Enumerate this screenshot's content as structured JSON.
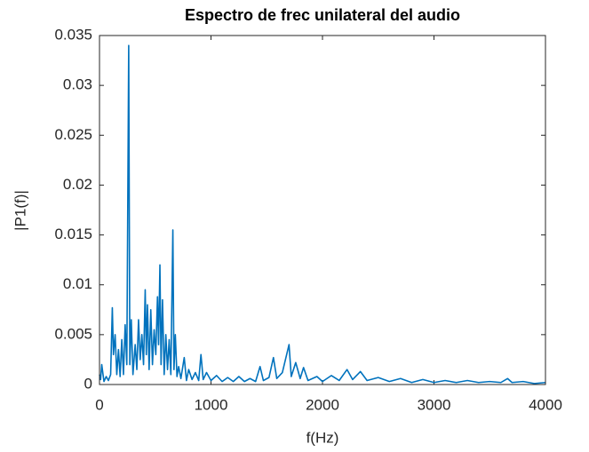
{
  "chart_data": {
    "type": "line",
    "title": "Espectro de frec unilateral del audio",
    "x_label": "f(Hz)",
    "y_label": "|P1(f)|",
    "x": [
      0,
      10,
      20,
      40,
      60,
      80,
      100,
      115,
      125,
      140,
      155,
      170,
      185,
      200,
      215,
      230,
      245,
      262,
      272,
      285,
      300,
      320,
      335,
      350,
      365,
      380,
      395,
      410,
      420,
      430,
      445,
      460,
      475,
      490,
      505,
      520,
      530,
      542,
      552,
      565,
      580,
      595,
      610,
      625,
      640,
      658,
      668,
      680,
      695,
      710,
      730,
      760,
      780,
      800,
      830,
      860,
      890,
      910,
      930,
      960,
      1000,
      1050,
      1100,
      1150,
      1200,
      1250,
      1300,
      1350,
      1400,
      1440,
      1470,
      1520,
      1560,
      1590,
      1640,
      1700,
      1720,
      1760,
      1800,
      1830,
      1870,
      1950,
      2000,
      2080,
      2150,
      2220,
      2270,
      2340,
      2400,
      2500,
      2600,
      2700,
      2800,
      2900,
      3000,
      3100,
      3200,
      3300,
      3400,
      3500,
      3600,
      3660,
      3700,
      3800,
      3900,
      4000
    ],
    "series": [
      {
        "name": "|P1(f)|",
        "color": "#0072BD",
        "values": [
          0.001,
          0.0005,
          0.002,
          0.0003,
          0.0008,
          0.0004,
          0.001,
          0.0077,
          0.003,
          0.005,
          0.001,
          0.0035,
          0.0008,
          0.0045,
          0.001,
          0.006,
          0.002,
          0.034,
          0.002,
          0.0065,
          0.001,
          0.004,
          0.0015,
          0.0065,
          0.0025,
          0.005,
          0.002,
          0.0095,
          0.003,
          0.008,
          0.0015,
          0.0075,
          0.002,
          0.0055,
          0.003,
          0.0088,
          0.004,
          0.012,
          0.002,
          0.0085,
          0.001,
          0.005,
          0.0015,
          0.0045,
          0.001,
          0.0155,
          0.0015,
          0.005,
          0.0008,
          0.0018,
          0.0006,
          0.0027,
          0.0004,
          0.0015,
          0.0005,
          0.0012,
          0.0004,
          0.003,
          0.0005,
          0.0012,
          0.0004,
          0.0009,
          0.0003,
          0.0007,
          0.0003,
          0.0008,
          0.0003,
          0.0006,
          0.0003,
          0.0018,
          0.0004,
          0.0007,
          0.0027,
          0.0006,
          0.0012,
          0.004,
          0.0008,
          0.0022,
          0.0006,
          0.0017,
          0.0004,
          0.0008,
          0.0003,
          0.0009,
          0.0004,
          0.0015,
          0.0005,
          0.0013,
          0.0004,
          0.0007,
          0.0003,
          0.0006,
          0.0002,
          0.0005,
          0.0002,
          0.0004,
          0.0002,
          0.0004,
          0.0002,
          0.0003,
          0.0002,
          0.0006,
          0.0002,
          0.0003,
          0.0001,
          0.0002
        ]
      }
    ],
    "xlim": [
      0,
      4000
    ],
    "xticks": [
      0,
      1000,
      2000,
      3000,
      4000
    ],
    "ylim": [
      0,
      0.035
    ],
    "yticks": [
      0,
      0.005,
      0.01,
      0.015,
      0.02,
      0.025,
      0.03,
      0.035
    ],
    "grid": false
  }
}
